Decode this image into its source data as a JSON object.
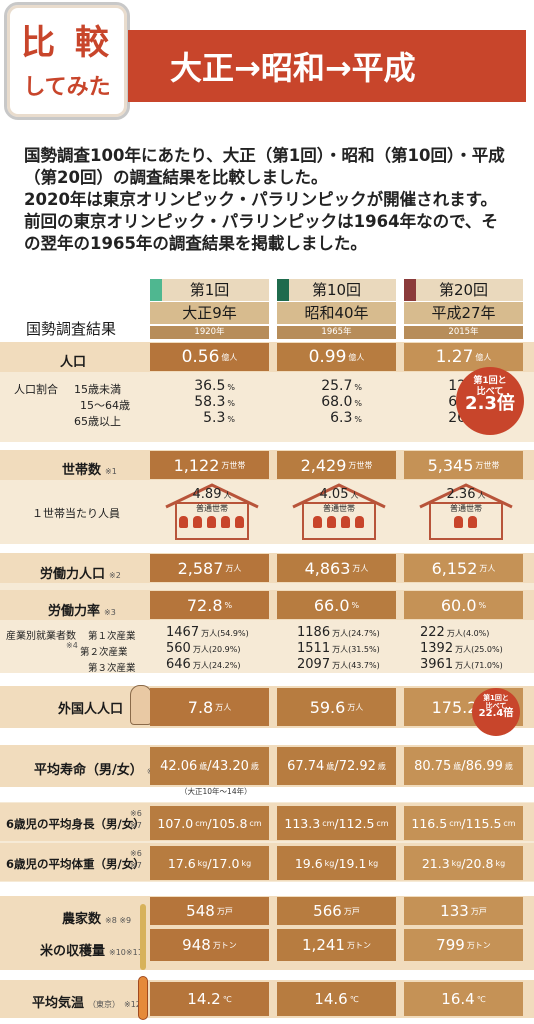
{
  "badge": {
    "top": "比 較",
    "bottom": "してみた"
  },
  "header": {
    "title": "大正→昭和→平成"
  },
  "intro": [
    "国勢調査100年にあたり、大正（第1回）・昭和（第10回）・平成",
    "（第20回）の調査結果を比較しました。",
    "2020年は東京オリンピック・パラリンピックが開催されます。",
    "前回の東京オリンピック・パラリンピックは1964年なので、そ",
    "の翌年の1965年の調査結果を掲載しました。"
  ],
  "table_title": "国勢調査結果",
  "columns": [
    {
      "round": "第1回",
      "era": "大正9年",
      "year": "1920年",
      "color": "#4fb790"
    },
    {
      "round": "第10回",
      "era": "昭和40年",
      "year": "1965年",
      "color": "#1f6b4d"
    },
    {
      "round": "第20回",
      "era": "平成27年",
      "year": "2015年",
      "color": "#8b3b3b"
    }
  ],
  "population": {
    "label": "人口",
    "values": [
      "0.56",
      "0.99",
      "1.27"
    ],
    "unit": "億人",
    "ratio_label": "人口割合",
    "ratio_rows": [
      "15歳未満",
      "15～64歳",
      "65歳以上"
    ],
    "ratios": [
      [
        "36.5",
        "58.3",
        "5.3"
      ],
      [
        "25.7",
        "68.0",
        "6.3"
      ],
      [
        "12.6",
        "60.7",
        "26.6"
      ]
    ],
    "pct": "%",
    "callout": {
      "line1": "第1回と",
      "line2": "比べて",
      "value": "2.3倍"
    }
  },
  "households": {
    "label": "世帯数",
    "note": "※1",
    "values": [
      "1,122",
      "2,429",
      "5,345"
    ],
    "unit": "万世帯",
    "per_label": "１世帯当たり人員",
    "per": [
      "4.89",
      "4.05",
      "2.36"
    ],
    "per_unit": "人",
    "per_sub": "普通世帯"
  },
  "labor": {
    "pop_label": "労働力人口",
    "pop_note": "※2",
    "pop": [
      "2,587",
      "4,863",
      "6,152"
    ],
    "pop_unit": "万人",
    "rate_label": "労働力率",
    "rate_note": "※3",
    "rate": [
      "72.8",
      "66.0",
      "60.0"
    ],
    "rate_unit": "%",
    "ind_label": "産業別就業者数",
    "ind_note": "※4",
    "ind_rows": [
      "第１次産業",
      "第２次産業",
      "第３次産業"
    ],
    "ind": [
      [
        "1467",
        "万人(54.9%)",
        "560",
        "万人(20.9%)",
        "646",
        "万人(24.2%)"
      ],
      [
        "1186",
        "万人(24.7%)",
        "1511",
        "万人(31.5%)",
        "2097",
        "万人(43.7%)"
      ],
      [
        "222",
        "万人(4.0%)",
        "1392",
        "万人(25.0%)",
        "3961",
        "万人(71.0%)"
      ]
    ]
  },
  "foreign": {
    "label": "外国人人口",
    "values": [
      "7.8",
      "59.6",
      "175.2"
    ],
    "unit": "万人",
    "callout": {
      "line1": "第1回と",
      "line2": "比べて",
      "value": "22.4倍"
    }
  },
  "life": {
    "label": "平均寿命（男/女）",
    "note": "※5",
    "values": [
      [
        "42.06",
        "43.20"
      ],
      [
        "67.74",
        "72.92"
      ],
      [
        "80.75",
        "86.99"
      ]
    ],
    "unit": "歳",
    "sub": "（大正10年～14年）"
  },
  "height": {
    "label": "6歳児の平均身長（男/女）",
    "note": "※6 ※7",
    "values": [
      [
        "107.0",
        "105.8"
      ],
      [
        "113.3",
        "112.5"
      ],
      [
        "116.5",
        "115.5"
      ]
    ],
    "unit": "cm"
  },
  "weight": {
    "label": "6歳児の平均体重（男/女）",
    "note": "※6 ※7",
    "values": [
      [
        "17.6",
        "17.0"
      ],
      [
        "19.6",
        "19.1"
      ],
      [
        "21.3",
        "20.8"
      ]
    ],
    "unit": "kg"
  },
  "farms": {
    "label": "農家数",
    "note": "※8 ※9",
    "values": [
      "548",
      "566",
      "133"
    ],
    "unit": "万戸"
  },
  "rice": {
    "label": "米の収穫量",
    "note": "※10※11",
    "values": [
      "948",
      "1,241",
      "799"
    ],
    "unit": "万トン"
  },
  "temp": {
    "label": "平均気温",
    "sub": "（東京）",
    "note": "※12",
    "values": [
      "14.2",
      "14.6",
      "16.4"
    ],
    "unit": "℃"
  }
}
